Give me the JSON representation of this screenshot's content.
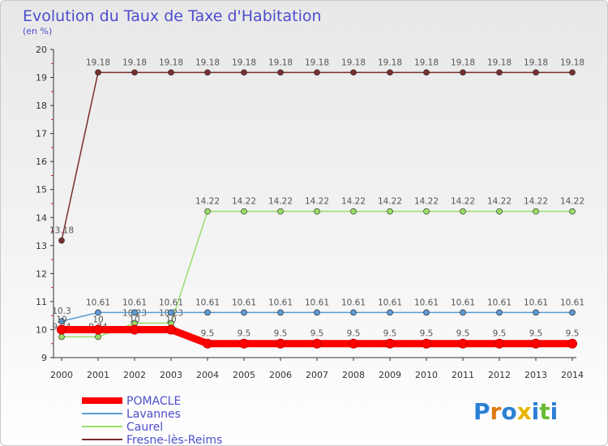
{
  "chart_data": {
    "type": "line",
    "title": "Evolution du Taux de Taxe d'Habitation",
    "subtitle": "(en %)",
    "ylim": [
      9,
      20
    ],
    "y_ticks": [
      9,
      10,
      11,
      12,
      13,
      14,
      15,
      16,
      17,
      18,
      19,
      20
    ],
    "x": [
      "2000",
      "2001",
      "2002",
      "2003",
      "2004",
      "2005",
      "2006",
      "2007",
      "2008",
      "2009",
      "2010",
      "2011",
      "2012",
      "2013",
      "2014"
    ],
    "grid": false,
    "legend": "bottom-left",
    "series": [
      {
        "name": "Fresne-lès-Reims",
        "color": "#7a2e2e",
        "values": [
          13.18,
          19.18,
          19.18,
          19.18,
          19.18,
          19.18,
          19.18,
          19.18,
          19.18,
          19.18,
          19.18,
          19.18,
          19.18,
          19.18,
          19.18
        ],
        "labels": [
          "13.18",
          "19.18",
          "19.18",
          "19.18",
          "19.18",
          "19.18",
          "19.18",
          "19.18",
          "19.18",
          "19.18",
          "19.18",
          "19.18",
          "19.18",
          "19.18",
          "19.18"
        ]
      },
      {
        "name": "Caurel",
        "color": "#99dd66",
        "values": [
          9.74,
          9.74,
          10.23,
          10.23,
          14.22,
          14.22,
          14.22,
          14.22,
          14.22,
          14.22,
          14.22,
          14.22,
          14.22,
          14.22,
          14.22
        ],
        "labels": [
          "9.74",
          "9.74",
          "10.23",
          "10.23",
          "14.22",
          "14.22",
          "14.22",
          "14.22",
          "14.22",
          "14.22",
          "14.22",
          "14.22",
          "14.22",
          "14.22",
          "14.22"
        ]
      },
      {
        "name": "Lavannes",
        "color": "#5b9bd5",
        "values": [
          10.3,
          10.61,
          10.61,
          10.61,
          10.61,
          10.61,
          10.61,
          10.61,
          10.61,
          10.61,
          10.61,
          10.61,
          10.61,
          10.61,
          10.61
        ],
        "labels": [
          "10.3",
          "10.61",
          "10.61",
          "10.61",
          "10.61",
          "10.61",
          "10.61",
          "10.61",
          "10.61",
          "10.61",
          "10.61",
          "10.61",
          "10.61",
          "10.61",
          "10.61"
        ]
      },
      {
        "name": "POMACLE",
        "color": "#ff0000",
        "values": [
          10,
          10,
          10,
          10,
          9.5,
          9.5,
          9.5,
          9.5,
          9.5,
          9.5,
          9.5,
          9.5,
          9.5,
          9.5,
          9.5
        ],
        "labels": [
          "10",
          "10",
          "10",
          "10",
          "9.5",
          "9.5",
          "9.5",
          "9.5",
          "9.5",
          "9.5",
          "9.5",
          "9.5",
          "9.5",
          "9.5",
          "9.5"
        ]
      }
    ],
    "legend_entries": [
      "POMACLE",
      "Lavannes",
      "Caurel",
      "Fresne-lès-Reims"
    ]
  },
  "logo": {
    "letters": [
      "P",
      "r",
      "o",
      "x",
      "i",
      "t",
      "i"
    ],
    "colors": [
      "#2a7fd4",
      "#e07a10",
      "#2a7fd4",
      "#e8b400",
      "#2a7fd4",
      "#66bb33",
      "#2a7fd4"
    ]
  }
}
